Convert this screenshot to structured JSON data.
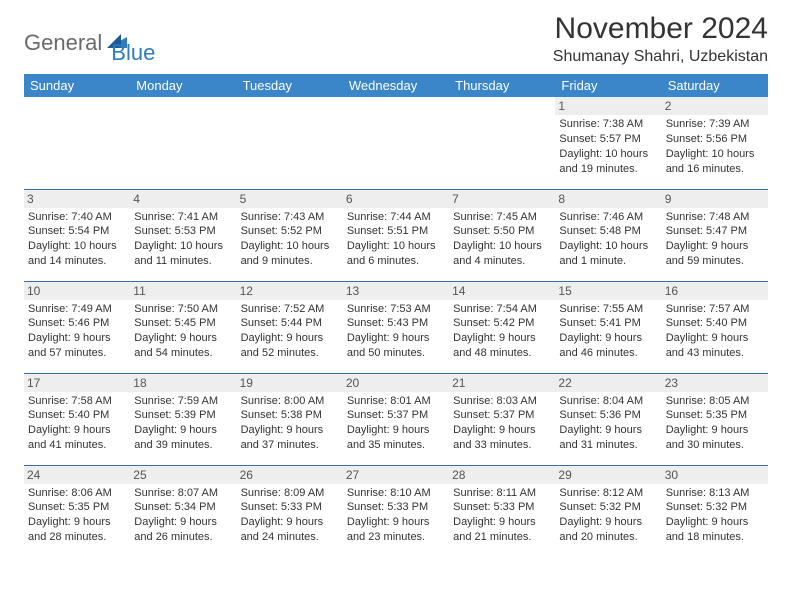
{
  "logo": {
    "text1": "General",
    "text2": "Blue"
  },
  "title": "November 2024",
  "location": "Shumanay Shahri, Uzbekistan",
  "colors": {
    "header_bg": "#3a86c8",
    "header_fg": "#ffffff",
    "row_border": "#3a6ea5",
    "daynum_bg": "#eeeeee",
    "logo_gray": "#6a6a6a",
    "logo_blue": "#2e7cc0"
  },
  "weekdays": [
    "Sunday",
    "Monday",
    "Tuesday",
    "Wednesday",
    "Thursday",
    "Friday",
    "Saturday"
  ],
  "weeks": [
    [
      null,
      null,
      null,
      null,
      null,
      {
        "n": "1",
        "sr": "Sunrise: 7:38 AM",
        "ss": "Sunset: 5:57 PM",
        "d1": "Daylight: 10 hours",
        "d2": "and 19 minutes."
      },
      {
        "n": "2",
        "sr": "Sunrise: 7:39 AM",
        "ss": "Sunset: 5:56 PM",
        "d1": "Daylight: 10 hours",
        "d2": "and 16 minutes."
      }
    ],
    [
      {
        "n": "3",
        "sr": "Sunrise: 7:40 AM",
        "ss": "Sunset: 5:54 PM",
        "d1": "Daylight: 10 hours",
        "d2": "and 14 minutes."
      },
      {
        "n": "4",
        "sr": "Sunrise: 7:41 AM",
        "ss": "Sunset: 5:53 PM",
        "d1": "Daylight: 10 hours",
        "d2": "and 11 minutes."
      },
      {
        "n": "5",
        "sr": "Sunrise: 7:43 AM",
        "ss": "Sunset: 5:52 PM",
        "d1": "Daylight: 10 hours",
        "d2": "and 9 minutes."
      },
      {
        "n": "6",
        "sr": "Sunrise: 7:44 AM",
        "ss": "Sunset: 5:51 PM",
        "d1": "Daylight: 10 hours",
        "d2": "and 6 minutes."
      },
      {
        "n": "7",
        "sr": "Sunrise: 7:45 AM",
        "ss": "Sunset: 5:50 PM",
        "d1": "Daylight: 10 hours",
        "d2": "and 4 minutes."
      },
      {
        "n": "8",
        "sr": "Sunrise: 7:46 AM",
        "ss": "Sunset: 5:48 PM",
        "d1": "Daylight: 10 hours",
        "d2": "and 1 minute."
      },
      {
        "n": "9",
        "sr": "Sunrise: 7:48 AM",
        "ss": "Sunset: 5:47 PM",
        "d1": "Daylight: 9 hours",
        "d2": "and 59 minutes."
      }
    ],
    [
      {
        "n": "10",
        "sr": "Sunrise: 7:49 AM",
        "ss": "Sunset: 5:46 PM",
        "d1": "Daylight: 9 hours",
        "d2": "and 57 minutes."
      },
      {
        "n": "11",
        "sr": "Sunrise: 7:50 AM",
        "ss": "Sunset: 5:45 PM",
        "d1": "Daylight: 9 hours",
        "d2": "and 54 minutes."
      },
      {
        "n": "12",
        "sr": "Sunrise: 7:52 AM",
        "ss": "Sunset: 5:44 PM",
        "d1": "Daylight: 9 hours",
        "d2": "and 52 minutes."
      },
      {
        "n": "13",
        "sr": "Sunrise: 7:53 AM",
        "ss": "Sunset: 5:43 PM",
        "d1": "Daylight: 9 hours",
        "d2": "and 50 minutes."
      },
      {
        "n": "14",
        "sr": "Sunrise: 7:54 AM",
        "ss": "Sunset: 5:42 PM",
        "d1": "Daylight: 9 hours",
        "d2": "and 48 minutes."
      },
      {
        "n": "15",
        "sr": "Sunrise: 7:55 AM",
        "ss": "Sunset: 5:41 PM",
        "d1": "Daylight: 9 hours",
        "d2": "and 46 minutes."
      },
      {
        "n": "16",
        "sr": "Sunrise: 7:57 AM",
        "ss": "Sunset: 5:40 PM",
        "d1": "Daylight: 9 hours",
        "d2": "and 43 minutes."
      }
    ],
    [
      {
        "n": "17",
        "sr": "Sunrise: 7:58 AM",
        "ss": "Sunset: 5:40 PM",
        "d1": "Daylight: 9 hours",
        "d2": "and 41 minutes."
      },
      {
        "n": "18",
        "sr": "Sunrise: 7:59 AM",
        "ss": "Sunset: 5:39 PM",
        "d1": "Daylight: 9 hours",
        "d2": "and 39 minutes."
      },
      {
        "n": "19",
        "sr": "Sunrise: 8:00 AM",
        "ss": "Sunset: 5:38 PM",
        "d1": "Daylight: 9 hours",
        "d2": "and 37 minutes."
      },
      {
        "n": "20",
        "sr": "Sunrise: 8:01 AM",
        "ss": "Sunset: 5:37 PM",
        "d1": "Daylight: 9 hours",
        "d2": "and 35 minutes."
      },
      {
        "n": "21",
        "sr": "Sunrise: 8:03 AM",
        "ss": "Sunset: 5:37 PM",
        "d1": "Daylight: 9 hours",
        "d2": "and 33 minutes."
      },
      {
        "n": "22",
        "sr": "Sunrise: 8:04 AM",
        "ss": "Sunset: 5:36 PM",
        "d1": "Daylight: 9 hours",
        "d2": "and 31 minutes."
      },
      {
        "n": "23",
        "sr": "Sunrise: 8:05 AM",
        "ss": "Sunset: 5:35 PM",
        "d1": "Daylight: 9 hours",
        "d2": "and 30 minutes."
      }
    ],
    [
      {
        "n": "24",
        "sr": "Sunrise: 8:06 AM",
        "ss": "Sunset: 5:35 PM",
        "d1": "Daylight: 9 hours",
        "d2": "and 28 minutes."
      },
      {
        "n": "25",
        "sr": "Sunrise: 8:07 AM",
        "ss": "Sunset: 5:34 PM",
        "d1": "Daylight: 9 hours",
        "d2": "and 26 minutes."
      },
      {
        "n": "26",
        "sr": "Sunrise: 8:09 AM",
        "ss": "Sunset: 5:33 PM",
        "d1": "Daylight: 9 hours",
        "d2": "and 24 minutes."
      },
      {
        "n": "27",
        "sr": "Sunrise: 8:10 AM",
        "ss": "Sunset: 5:33 PM",
        "d1": "Daylight: 9 hours",
        "d2": "and 23 minutes."
      },
      {
        "n": "28",
        "sr": "Sunrise: 8:11 AM",
        "ss": "Sunset: 5:33 PM",
        "d1": "Daylight: 9 hours",
        "d2": "and 21 minutes."
      },
      {
        "n": "29",
        "sr": "Sunrise: 8:12 AM",
        "ss": "Sunset: 5:32 PM",
        "d1": "Daylight: 9 hours",
        "d2": "and 20 minutes."
      },
      {
        "n": "30",
        "sr": "Sunrise: 8:13 AM",
        "ss": "Sunset: 5:32 PM",
        "d1": "Daylight: 9 hours",
        "d2": "and 18 minutes."
      }
    ]
  ]
}
